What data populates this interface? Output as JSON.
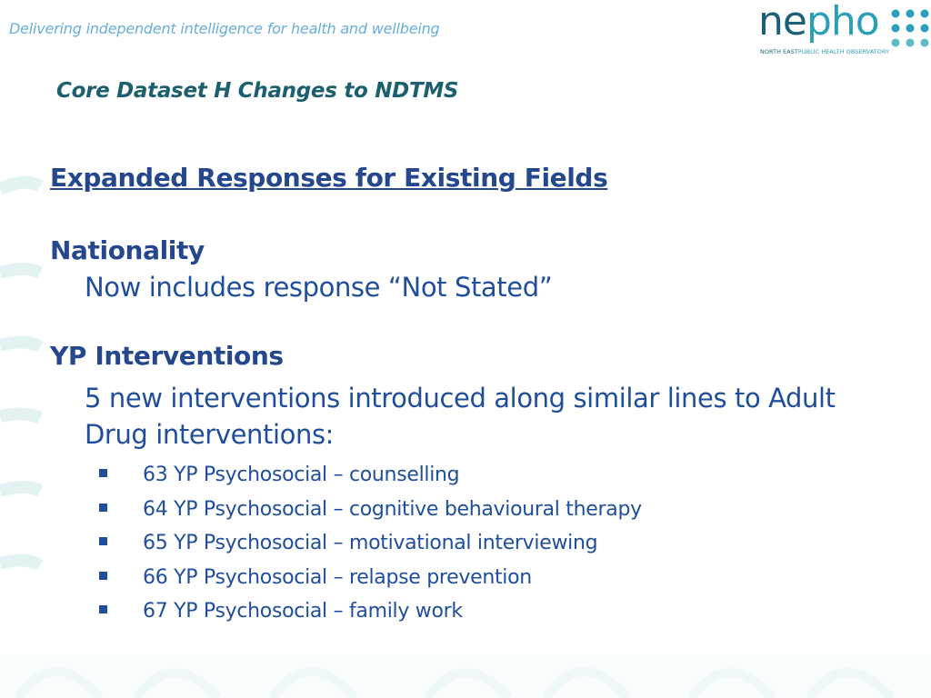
{
  "header": {
    "tagline": "Delivering independent intelligence for health and wellbeing",
    "logo": {
      "word_part1": "ne",
      "word_part2": "pho",
      "subtitle_part1": "NORTH EAST",
      "subtitle_part2": "PUBLIC HEALTH OBSERVATORY"
    }
  },
  "slide": {
    "title": "Core Dataset H Changes to NDTMS",
    "main_heading": "Expanded Responses for Existing Fields",
    "sections": [
      {
        "title": "Nationality",
        "body": "Now includes response “Not Stated”"
      },
      {
        "title": "YP Interventions",
        "body": "5 new interventions introduced along similar lines to Adult Drug interventions:"
      }
    ],
    "bullets": [
      "63 YP Psychosocial – counselling",
      "64 YP Psychosocial – cognitive behavioural therapy",
      "65 YP Psychosocial – motivational interviewing",
      "66 YP Psychosocial – relapse prevention",
      "67 YP Psychosocial – family work"
    ]
  },
  "colors": {
    "tagline": "#66aedc",
    "title": "#1c5f6e",
    "heading": "#24478d",
    "body": "#1f4e9c",
    "logo_dark": "#1b5f7a",
    "logo_teal": "#2a9fb6",
    "decor": "#e3f3f3"
  },
  "icons": {
    "logo_dots": "dot-grid-icon",
    "bullet": "square-bullet-icon"
  }
}
